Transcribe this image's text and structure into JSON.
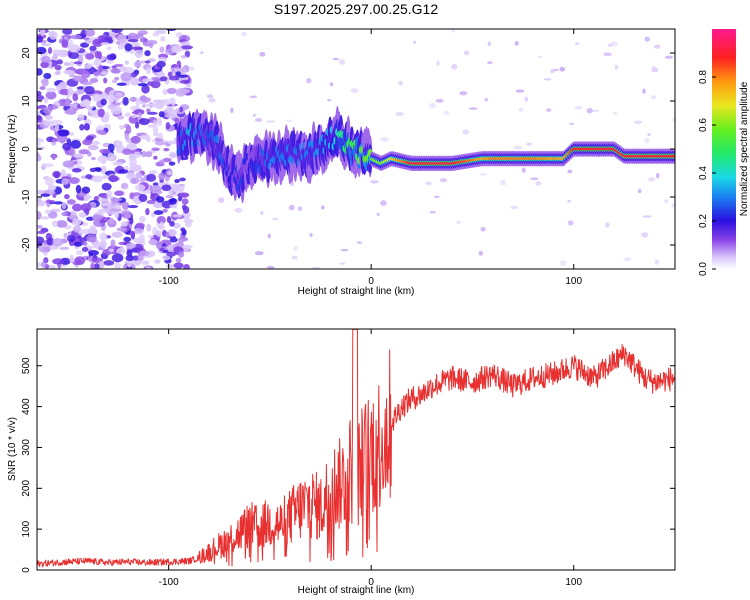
{
  "title": "S197.2025.297.00.25.G12",
  "colors": {
    "snr_line": "#e83030",
    "ridge_colors": [
      "#ffffff",
      "#e8d8ff",
      "#c9a6f5",
      "#a571ea",
      "#7b3fe0",
      "#4b1ed6",
      "#1b28e8",
      "#18a8f0",
      "#22e0c8",
      "#3ce04a",
      "#d8e020",
      "#ff9a10",
      "#ff2020",
      "#ff1a88"
    ]
  },
  "chart_data": [
    {
      "type": "heatmap",
      "name": "spectrogram",
      "xlabel": "Height of straight line (km)",
      "ylabel": "Frequency (Hz)",
      "xlim": [
        -165,
        150
      ],
      "ylim": [
        -25,
        25
      ],
      "xticks": [
        -100,
        0,
        100
      ],
      "xtick_labels": [
        "-100",
        "0",
        "100"
      ],
      "yticks": [
        -20,
        -10,
        0,
        10,
        20
      ],
      "ytick_labels": [
        "-20",
        "-10",
        "0",
        "10",
        "20"
      ],
      "ridge": {
        "x": [
          -95,
          -90,
          -85,
          -80,
          -75,
          -70,
          -65,
          -60,
          -50,
          -40,
          -30,
          -20,
          -15,
          -10,
          -5,
          0,
          5,
          10,
          20,
          40,
          55,
          60,
          80,
          95,
          100,
          120,
          125,
          150
        ],
        "freq": [
          1,
          3,
          3,
          2,
          1,
          -5,
          -6,
          -3,
          -2,
          -1,
          -1,
          2,
          3,
          0,
          -1,
          -2,
          -3,
          -2,
          -3,
          -3,
          -2,
          -2,
          -2,
          -2,
          0,
          0,
          -1.5,
          -1.5
        ],
        "amplitude": [
          0.25,
          0.35,
          0.3,
          0.25,
          0.3,
          0.2,
          0.25,
          0.2,
          0.3,
          0.3,
          0.3,
          0.35,
          0.45,
          0.5,
          0.55,
          0.6,
          0.6,
          0.7,
          0.9,
          0.9,
          0.75,
          0.8,
          0.8,
          0.75,
          0.88,
          0.9,
          0.9,
          0.9
        ]
      },
      "colorbar": {
        "label": "Normalized spectral amplitude",
        "range": [
          0,
          1
        ],
        "ticks": [
          0.0,
          0.2,
          0.4,
          0.6,
          0.8
        ],
        "tick_labels": [
          "0.0",
          "0.2",
          "0.4",
          "0.6",
          "0.8"
        ]
      }
    },
    {
      "type": "line",
      "name": "snr",
      "xlabel": "Height of straight line (km)",
      "ylabel": "SNR (10 * v/v)",
      "xlim": [
        -165,
        150
      ],
      "ylim": [
        0,
        590
      ],
      "xticks": [
        -100,
        0,
        100
      ],
      "xtick_labels": [
        "-100",
        "0",
        "100"
      ],
      "yticks": [
        0,
        100,
        200,
        300,
        400,
        500
      ],
      "ytick_labels": [
        "0",
        "100",
        "200",
        "300",
        "400",
        "500"
      ],
      "series": [
        {
          "name": "SNR",
          "x": [
            -165,
            -150,
            -140,
            -130,
            -120,
            -110,
            -100,
            -90,
            -85,
            -80,
            -75,
            -70,
            -65,
            -60,
            -55,
            -50,
            -45,
            -40,
            -35,
            -30,
            -25,
            -20,
            -15,
            -10,
            -8,
            -5,
            0,
            5,
            10,
            15,
            20,
            25,
            30,
            40,
            50,
            60,
            70,
            80,
            90,
            100,
            110,
            120,
            125,
            130,
            135,
            140,
            150
          ],
          "y": [
            15,
            20,
            22,
            18,
            20,
            18,
            20,
            22,
            30,
            45,
            60,
            75,
            90,
            110,
            100,
            120,
            110,
            130,
            150,
            165,
            150,
            200,
            210,
            250,
            200,
            260,
            290,
            320,
            360,
            400,
            420,
            430,
            450,
            470,
            460,
            480,
            450,
            470,
            480,
            500,
            470,
            510,
            530,
            500,
            470,
            460,
            470
          ]
        }
      ]
    }
  ]
}
